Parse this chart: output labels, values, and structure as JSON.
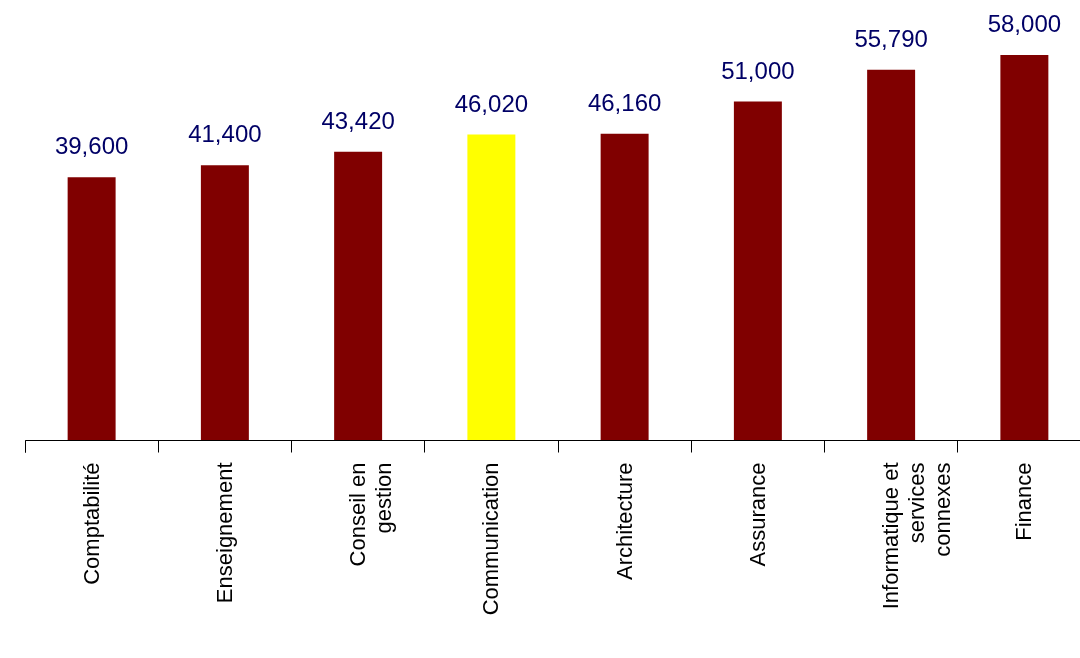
{
  "chart_data": {
    "type": "bar",
    "categories": [
      "Comptabilité",
      "Enseignement",
      "Conseil en gestion",
      "Communication",
      "Architecture",
      "Assurance",
      "Informatique et services connexes",
      "Finance"
    ],
    "values": [
      39600,
      41400,
      43420,
      46020,
      46160,
      51000,
      55790,
      58000
    ],
    "colors": [
      "#800000",
      "#800000",
      "#800000",
      "#ffff00",
      "#800000",
      "#800000",
      "#800000",
      "#800000"
    ],
    "value_labels": [
      "39,600",
      "41,400",
      "43,420",
      "46,020",
      "46,160",
      "51,000",
      "55,790",
      "58,000"
    ]
  }
}
